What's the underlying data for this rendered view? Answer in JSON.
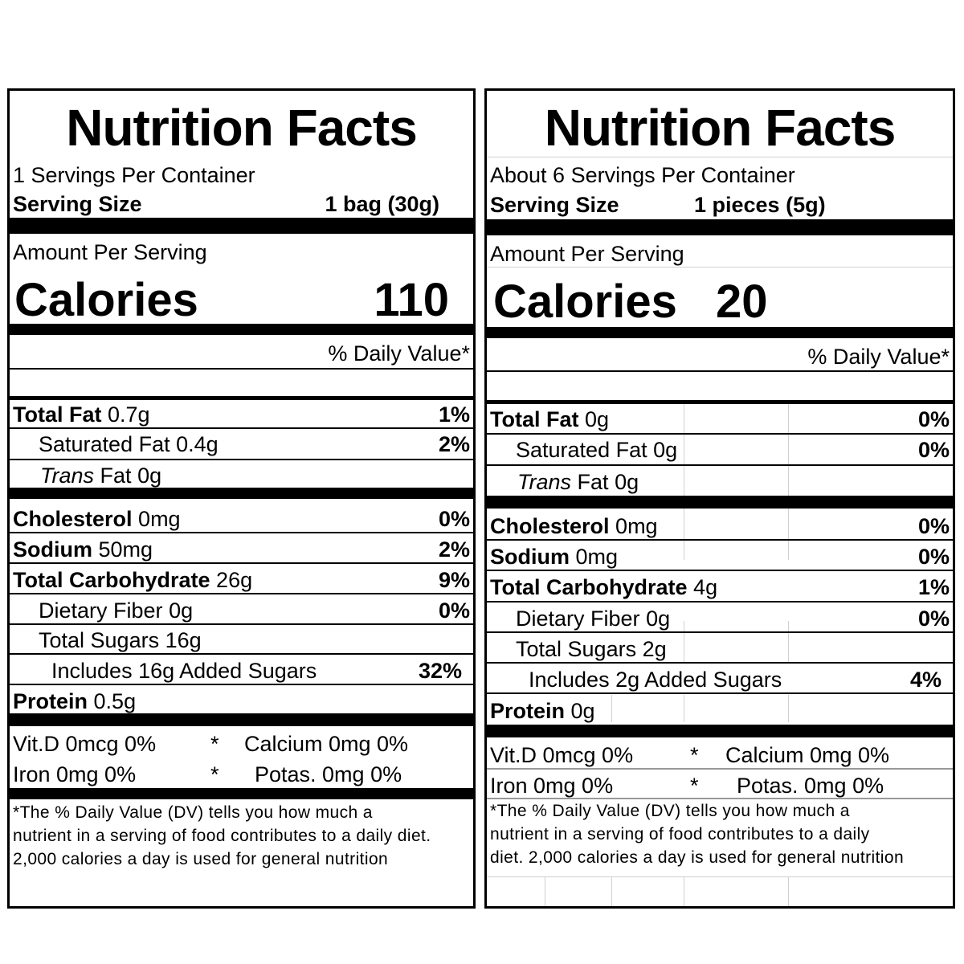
{
  "labels": [
    {
      "title": "Nutrition Facts",
      "servings_per_container": "1 Servings Per Container",
      "serving_size_label": "Serving Size",
      "serving_size_value": "1 bag (30g)",
      "amount_per_serving": "Amount Per Serving",
      "calories_label": "Calories",
      "calories_value": "110",
      "daily_value_header": "% Daily Value*",
      "nutrients": [
        {
          "name": "Total Fat",
          "amount": "0.7g",
          "dv": "1%"
        },
        {
          "name": "Saturated Fat",
          "amount": "0.4g",
          "dv": "2%"
        },
        {
          "name_italic": "Trans",
          "name": "Fat",
          "amount": "0g",
          "dv": ""
        },
        {
          "name": "Cholesterol",
          "amount": "0mg",
          "dv": "0%"
        },
        {
          "name": "Sodium",
          "amount": "50mg",
          "dv": "2%"
        },
        {
          "name": "Total Carbohydrate",
          "amount": "26g",
          "dv": "9%"
        },
        {
          "name": "Dietary Fiber",
          "amount": "0g",
          "dv": "0%"
        },
        {
          "name": "Total Sugars",
          "amount": "16g",
          "dv": ""
        },
        {
          "name": "Includes 16g Added Sugars",
          "amount": "",
          "dv": "32%"
        },
        {
          "name": "Protein",
          "amount": "0.5g",
          "dv": ""
        }
      ],
      "vitamins": {
        "vitd": "Vit.D 0mcg  0%",
        "star1": "*",
        "calcium": "Calcium 0mg 0%",
        "iron": "Iron  0mg  0%",
        "star2": "*",
        "potassium": "Potas. 0mg 0%"
      },
      "footnote": [
        "*The % Daily Value (DV) tells you how much a",
        "nutrient in a serving of food contributes to a daily diet.",
        "2,000 calories a day is used for general nutrition"
      ]
    },
    {
      "title": "Nutrition Facts",
      "servings_per_container": "About 6 Servings Per Container",
      "serving_size_label": "Serving Size",
      "serving_size_value": "1 pieces (5g)",
      "amount_per_serving": "Amount Per Serving",
      "calories_label": "Calories",
      "calories_value": "20",
      "daily_value_header": "% Daily Value*",
      "nutrients": [
        {
          "name": "Total Fat",
          "amount": "0g",
          "dv": "0%"
        },
        {
          "name": "Saturated Fat",
          "amount": "0g",
          "dv": "0%"
        },
        {
          "name_italic": "Trans",
          "name": "Fat",
          "amount": "0g",
          "dv": ""
        },
        {
          "name": "Cholesterol",
          "amount": "0mg",
          "dv": "0%"
        },
        {
          "name": "Sodium",
          "amount": "0mg",
          "dv": "0%"
        },
        {
          "name": "Total Carbohydrate",
          "amount": "4g",
          "dv": "1%"
        },
        {
          "name": "Dietary Fiber",
          "amount": "0g",
          "dv": "0%"
        },
        {
          "name": "Total Sugars",
          "amount": "2g",
          "dv": ""
        },
        {
          "name": "Includes 2g Added Sugars",
          "amount": "",
          "dv": "4%"
        },
        {
          "name": "Protein",
          "amount": "0g",
          "dv": ""
        }
      ],
      "vitamins": {
        "vitd": "Vit.D 0mcg  0%",
        "star1": "*",
        "calcium": "Calcium 0mg 0%",
        "iron": "Iron  0mg  0%",
        "star2": "*",
        "potassium": "Potas. 0mg 0%"
      },
      "footnote": [
        "*The % Daily Value (DV) tells you how much a",
        "nutrient in a serving of food contributes to a daily",
        "diet. 2,000 calories a day is used for general nutrition"
      ]
    }
  ]
}
